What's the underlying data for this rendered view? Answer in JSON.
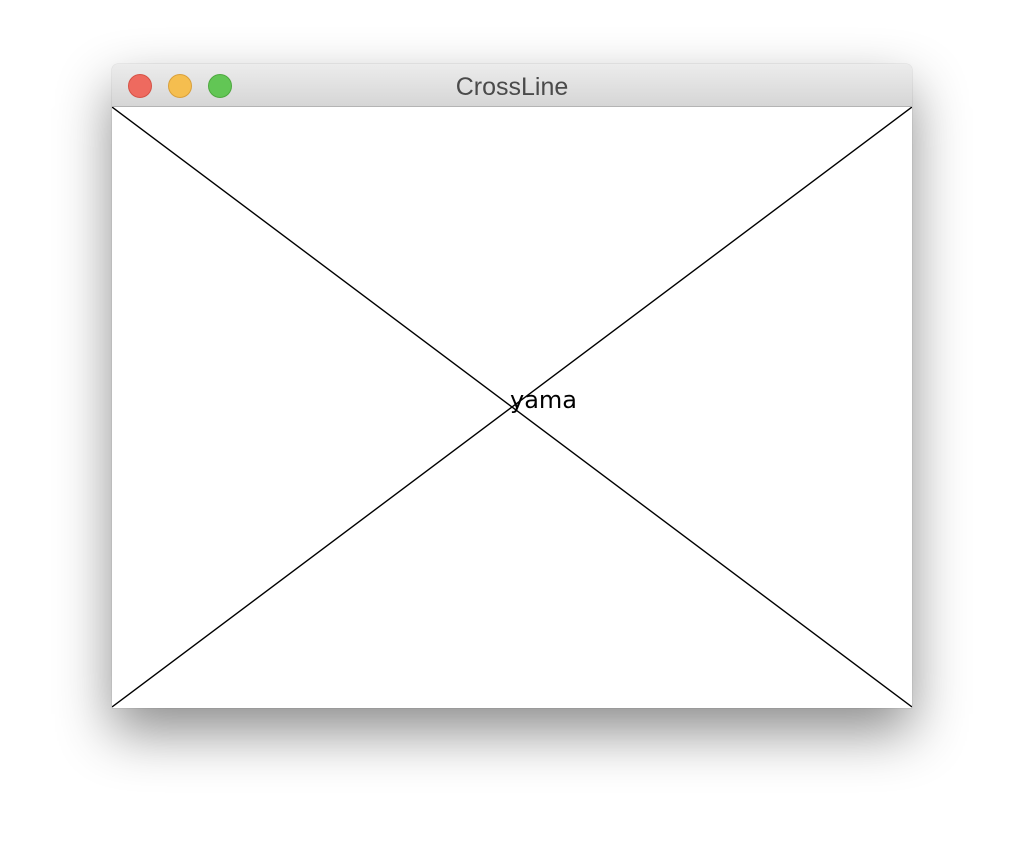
{
  "window": {
    "title": "CrossLine"
  },
  "canvas": {
    "label": "yama",
    "line_color": "#000000",
    "background": "#ffffff"
  },
  "titlebar": {
    "close_color": "#ee6a5f",
    "minimize_color": "#f5be4f",
    "zoom_color": "#62c655"
  }
}
